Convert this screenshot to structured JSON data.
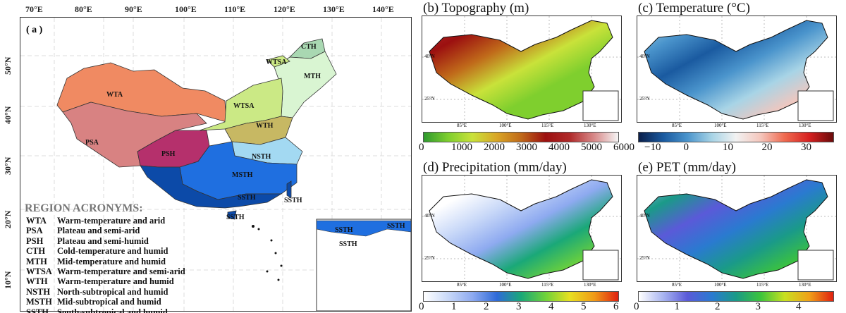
{
  "panel_a": {
    "label": "( a )",
    "lon_ticks": [
      "70°E",
      "80°E",
      "90°E",
      "100°E",
      "110°E",
      "120°E",
      "130°E",
      "140°E"
    ],
    "lat_ticks": [
      "50°N",
      "40°N",
      "30°N",
      "20°N",
      "10°N"
    ],
    "regions": [
      {
        "code": "WTA",
        "color": "#f08a62"
      },
      {
        "code": "PSA",
        "color": "#d88282"
      },
      {
        "code": "PSH",
        "color": "#b5306c"
      },
      {
        "code": "CTH",
        "color": "#a9d8b2"
      },
      {
        "code": "MTH",
        "color": "#d9f5d2"
      },
      {
        "code": "WTSA",
        "color": "#cbe985"
      },
      {
        "code": "WTH",
        "color": "#c7b863"
      },
      {
        "code": "NSTH",
        "color": "#a3d9f2"
      },
      {
        "code": "MSTH",
        "color": "#1f6fe0"
      },
      {
        "code": "SSTH",
        "color": "#0c4aa8"
      }
    ],
    "legend_title": "REGION ACRONYMS:",
    "legend": [
      {
        "code": "WTA",
        "desc": "Warm-temperature and arid"
      },
      {
        "code": "PSA",
        "desc": "Plateau and semi-arid"
      },
      {
        "code": "PSH",
        "desc": "Plateau and semi-humid"
      },
      {
        "code": "CTH",
        "desc": "Cold-temperature and humid"
      },
      {
        "code": "MTH",
        "desc": "Mid-temperature and humid"
      },
      {
        "code": "WTSA",
        "desc": "Warm-temperature and semi-arid"
      },
      {
        "code": "WTH",
        "desc": "Warm-temperature and humid"
      },
      {
        "code": "NSTH",
        "desc": "North-subtropical and humid"
      },
      {
        "code": "MSTH",
        "desc": "Mid-subtropical and humid"
      },
      {
        "code": "SSTH",
        "desc": "South-subtropical and humid"
      }
    ]
  },
  "small_panels": [
    {
      "title": "(b) Topography (m)",
      "cbar_ticks": [
        "0",
        "1000",
        "2000",
        "3000",
        "4000",
        "5000",
        "6000"
      ],
      "colors": [
        "#2e9a2e",
        "#7fcf2e",
        "#c9e23a",
        "#d9a526",
        "#c06a1a",
        "#9c1010",
        "#b02a2a",
        "#d88a8a",
        "#f5f5f5"
      ]
    },
    {
      "title": "(c) Temperature (°C)",
      "cbar_ticks": [
        "−10",
        "0",
        "10",
        "20",
        "30"
      ],
      "colors": [
        "#0b1f4a",
        "#1a5aa0",
        "#4a94cc",
        "#a8d4e6",
        "#f2f2f2",
        "#f5c6bc",
        "#ef6a50",
        "#d62020",
        "#6a0a0a"
      ]
    },
    {
      "title": "(d) Precipitation (mm/day)",
      "cbar_ticks": [
        "0",
        "1",
        "2",
        "3",
        "4",
        "5",
        "6"
      ],
      "colors": [
        "#ffffff",
        "#c8d8f8",
        "#8eaaf0",
        "#2e6ad8",
        "#1aa878",
        "#6ed23a",
        "#e8e020",
        "#f09a18",
        "#e02010"
      ]
    },
    {
      "title": "(e) PET (mm/day)",
      "cbar_ticks": [
        "0",
        "1",
        "2",
        "3",
        "4"
      ],
      "colors": [
        "#ffffff",
        "#a8b4f0",
        "#5a5ad8",
        "#2a7ad0",
        "#1a9a88",
        "#3cc43c",
        "#c8e020",
        "#f0a018",
        "#e02010"
      ]
    }
  ],
  "small_lon_ticks": [
    "85°E",
    "100°E",
    "115°E",
    "130°E"
  ],
  "small_lat_ticks": [
    "40°N",
    "25°N"
  ]
}
